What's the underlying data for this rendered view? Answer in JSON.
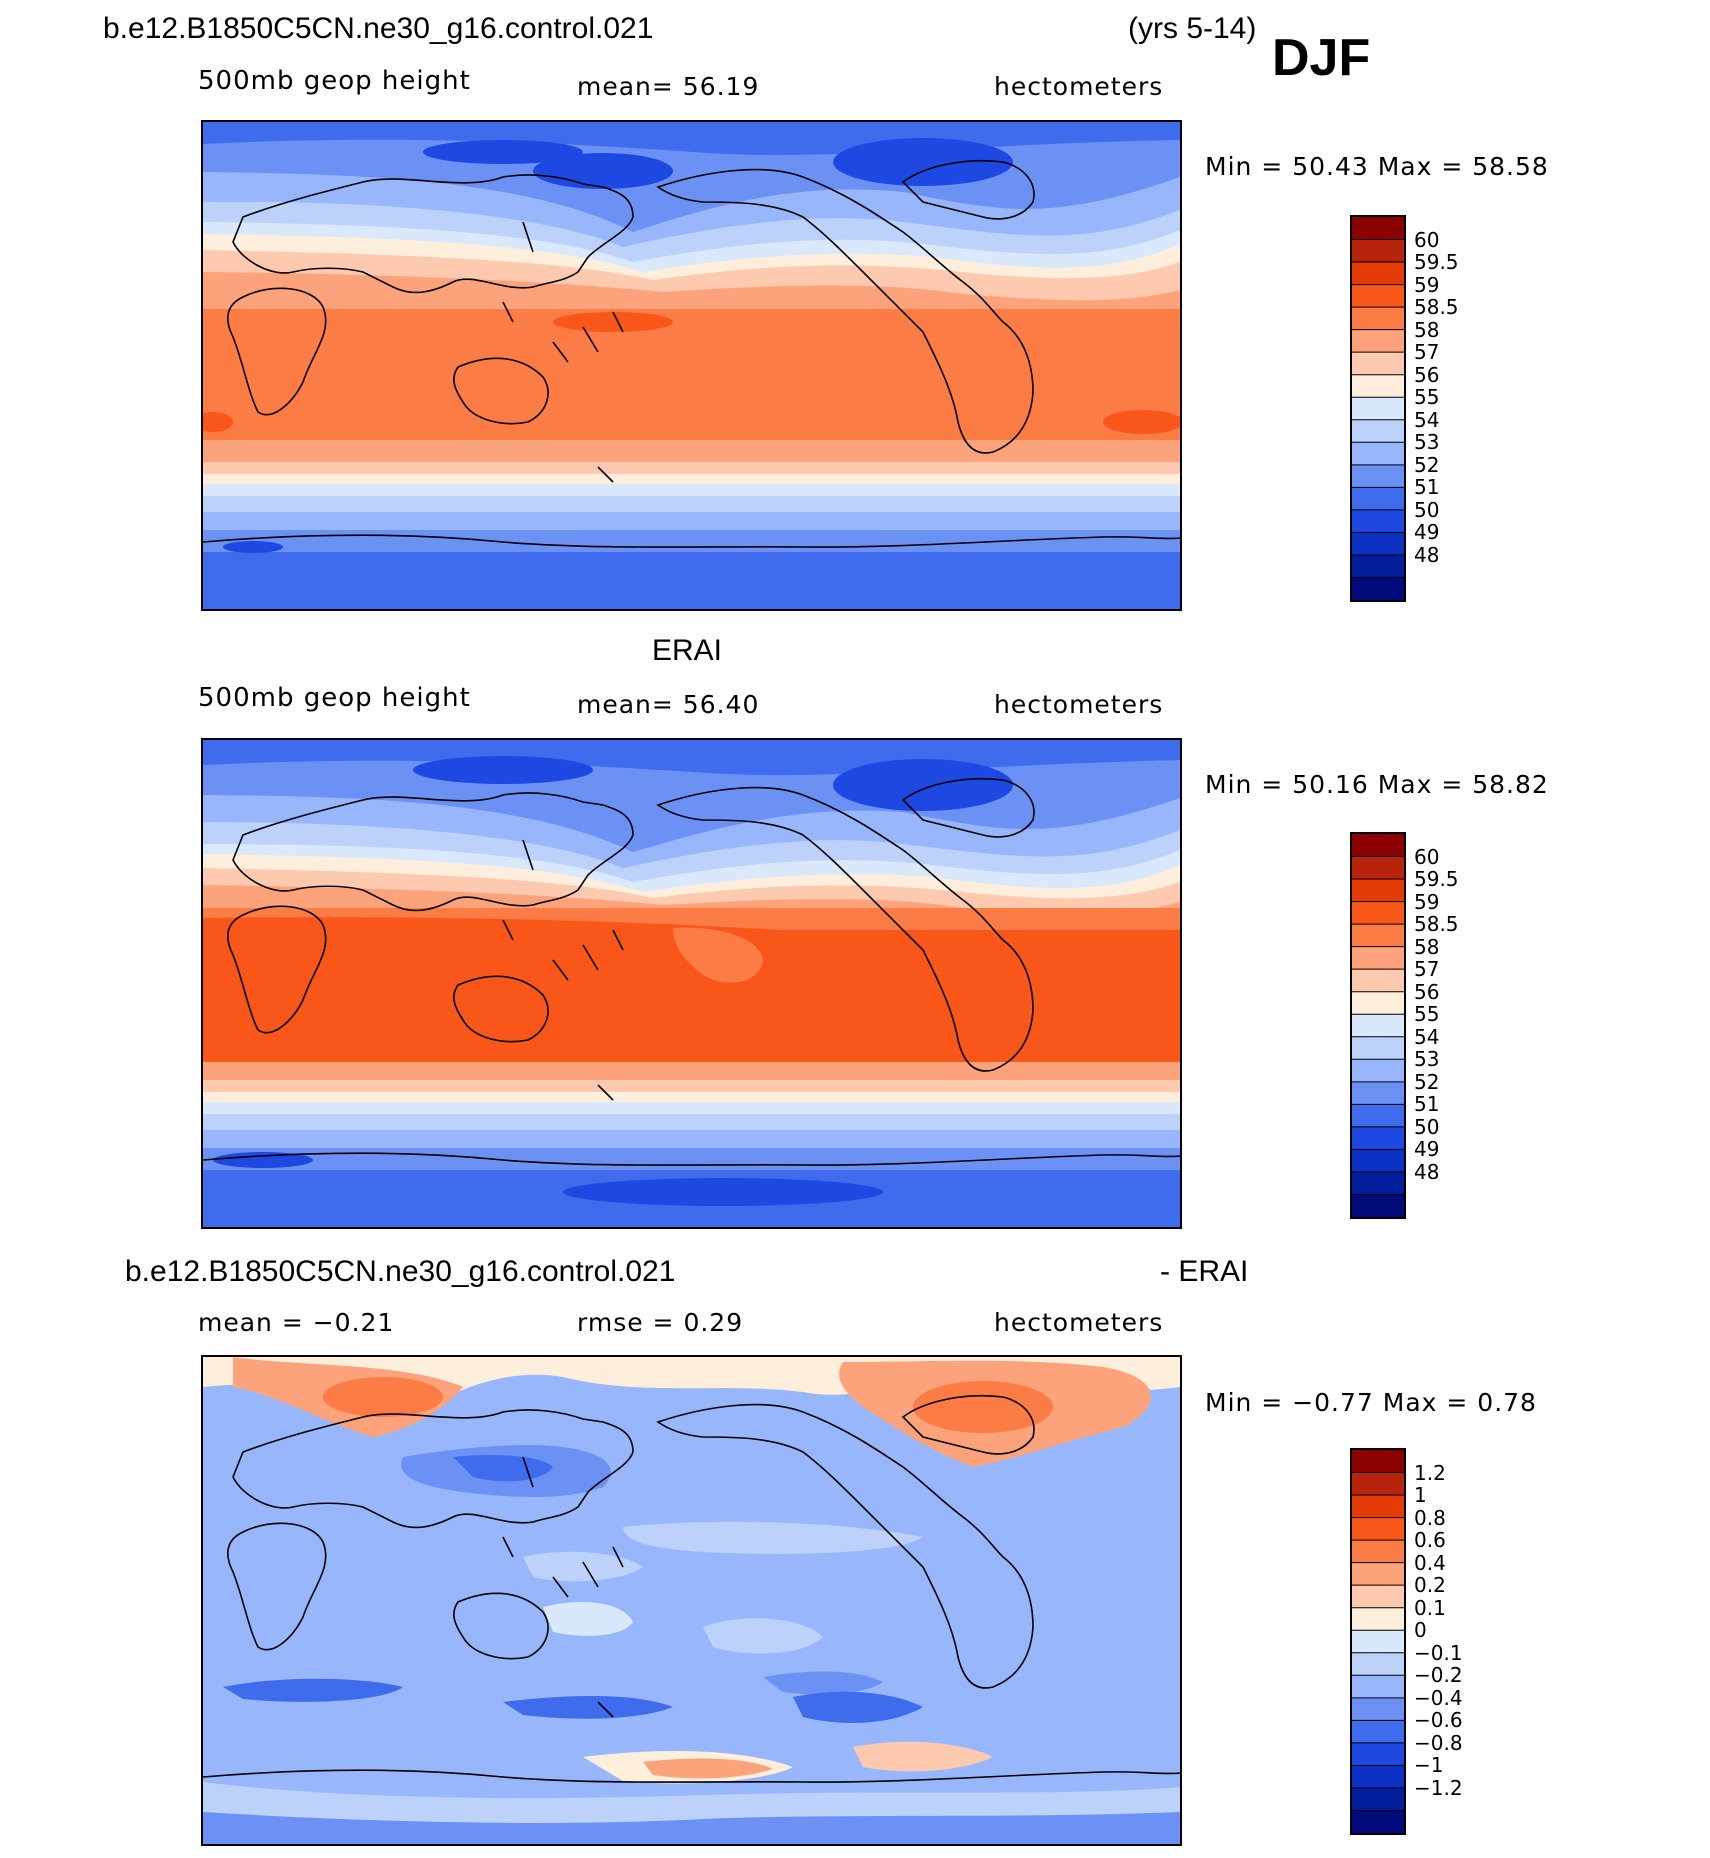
{
  "header": {
    "case_title": "b.e12.B1850C5CN.ne30_g16.control.021",
    "years": "(yrs 5-14)",
    "season": "DJF"
  },
  "panels": [
    {
      "id": "model",
      "title": "",
      "left_label": "500mb  geop  height",
      "center_label": "mean=   56.19",
      "right_label": "hectometers",
      "minmax": "Min  =    50.43  Max  =    58.58"
    },
    {
      "id": "obs",
      "title": "ERAI",
      "left_label": "500mb  geop  height",
      "center_label": "mean=   56.40",
      "right_label": "hectometers",
      "minmax": "Min  =    50.16  Max  =    58.82"
    },
    {
      "id": "diff",
      "title_left": "b.e12.B1850C5CN.ne30_g16.control.021",
      "title_right": "- ERAI",
      "left_label": "mean  =    −0.21",
      "center_label": "rmse  =     0.29",
      "right_label": "hectometers",
      "minmax": "Min  =   −0.77  Max  =     0.78"
    }
  ],
  "chart_data": [
    {
      "type": "heatmap",
      "title": "500mb geop height (model)",
      "units": "hectometers",
      "mean": 56.19,
      "min": 50.43,
      "max": 58.58,
      "colorbar_levels": [
        "60",
        "59.5",
        "59",
        "58.5",
        "58",
        "57",
        "56",
        "55",
        "54",
        "53",
        "52",
        "51",
        "50",
        "49",
        "48"
      ],
      "colors": [
        "#8b0000",
        "#b8230c",
        "#e43a06",
        "#f9561a",
        "#fc7c45",
        "#fda37b",
        "#fdcab0",
        "#feeedc",
        "#d9e8fb",
        "#bcd2fb",
        "#98b6fb",
        "#6b91f5",
        "#3f6ced",
        "#1e48e2",
        "#0a30c4",
        "#001e9c",
        "#000a7a"
      ]
    },
    {
      "type": "heatmap",
      "title": "500mb geop height (ERAI)",
      "units": "hectometers",
      "mean": 56.4,
      "min": 50.16,
      "max": 58.82,
      "colorbar_levels": [
        "60",
        "59.5",
        "59",
        "58.5",
        "58",
        "57",
        "56",
        "55",
        "54",
        "53",
        "52",
        "51",
        "50",
        "49",
        "48"
      ]
    },
    {
      "type": "heatmap",
      "title": "b.e12.B1850C5CN.ne30_g16.control.021 - ERAI",
      "units": "hectometers",
      "mean": -0.21,
      "rmse": 0.29,
      "min": -0.77,
      "max": 0.78,
      "colorbar_levels": [
        "1.2",
        "1",
        "0.8",
        "0.6",
        "0.4",
        "0.2",
        "0.1",
        "0",
        "−0.1",
        "−0.2",
        "−0.4",
        "−0.6",
        "−0.8",
        "−1",
        "−1.2"
      ]
    }
  ]
}
